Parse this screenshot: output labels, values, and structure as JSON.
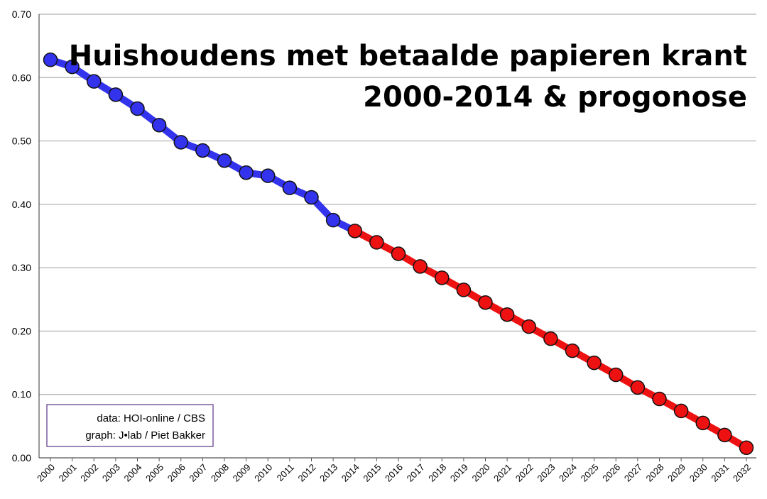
{
  "chart_data": {
    "type": "line",
    "title": "Huishoudens met betaalde papieren krant",
    "subtitle": "2000-2014  & progonose",
    "xlabel": "",
    "ylabel": "",
    "ylim": [
      0,
      0.7
    ],
    "y_ticks": [
      "0.00",
      "0.10",
      "0.20",
      "0.30",
      "0.40",
      "0.50",
      "0.60",
      "0.70"
    ],
    "grid": true,
    "x": [
      "2000",
      "2001",
      "2002",
      "2003",
      "2004",
      "2005",
      "2006",
      "2007",
      "2008",
      "2009",
      "2010",
      "2011",
      "2012",
      "2013",
      "2014",
      "2015",
      "2016",
      "2017",
      "2018",
      "2019",
      "2020",
      "2021",
      "2022",
      "2023",
      "2024",
      "2025",
      "2026",
      "2027",
      "2028",
      "2029",
      "2030",
      "2031",
      "2032"
    ],
    "series": [
      {
        "color": "#3333ee",
        "x": [
          "2000",
          "2001",
          "2002",
          "2003",
          "2004",
          "2005",
          "2006",
          "2007",
          "2008",
          "2009",
          "2010",
          "2011",
          "2012",
          "2013"
        ],
        "values": [
          0.628,
          0.617,
          0.594,
          0.573,
          0.551,
          0.525,
          0.498,
          0.485,
          0.469,
          0.45,
          0.445,
          0.426,
          0.411,
          0.375
        ]
      },
      {
        "color": "#ee1111",
        "x": [
          "2014",
          "2015",
          "2016",
          "2017",
          "2018",
          "2019",
          "2020",
          "2021",
          "2022",
          "2023",
          "2024",
          "2025",
          "2026",
          "2027",
          "2028",
          "2029",
          "2030",
          "2031",
          "2032"
        ],
        "values": [
          0.358,
          0.34,
          0.322,
          0.302,
          0.284,
          0.265,
          0.245,
          0.226,
          0.207,
          0.188,
          0.169,
          0.15,
          0.131,
          0.111,
          0.093,
          0.074,
          0.055,
          0.036,
          0.016
        ]
      }
    ],
    "annotation": {
      "line1": "data: HOI-online / CBS",
      "line2": "graph: J•lab / Piet Bakker"
    }
  }
}
